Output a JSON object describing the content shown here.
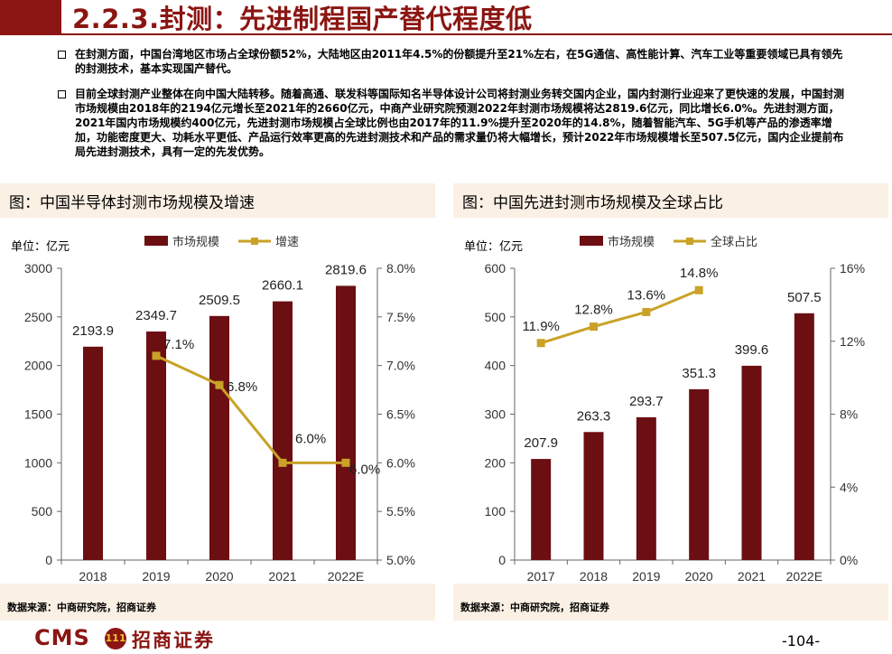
{
  "header": {
    "title": "2.2.3.封测：先进制程国产替代程度低"
  },
  "bullets": [
    "在封测方面，中国台湾地区市场占全球份额52%，大陆地区由2011年4.5%的份额提升至21%左右，在5G通信、高性能计算、汽车工业等重要领域已具有领先的封测技术，基本实现国产替代。",
    "目前全球封测产业整体在向中国大陆转移。随着高通、联发科等国际知名半导体设计公司将封测业务转交国内企业，国内封测行业迎来了更快速的发展，中国封测市场规模由2018年的2194亿元增长至2021年的2660亿元，中商产业研究院预测2022年封测市场规模将达2819.6亿元，同比增长6.0%。先进封测方面，2021年国内市场规模约400亿元，先进封测市场规模占全球比例也由2017年的11.9%提升至2020年的14.8%，随着智能汽车、5G手机等产品的渗透率增加，功能密度更大、功耗水平更低、产品运行效率更高的先进封测技术和产品的需求量仍将大幅增长，预计2022年市场规模增长至507.5亿元，国内企业提前布局先进封测技术，具有一定的先发优势。"
  ],
  "colors": {
    "brand": "#8b1512",
    "bar": "#6b0f12",
    "line": "#c9a227",
    "panel_bg": "#fbf0e4"
  },
  "chart_data": [
    {
      "type": "bar",
      "panel_title": "图：中国半导体封测市场规模及增速",
      "unit": "单位：亿元",
      "categories": [
        "2018",
        "2019",
        "2020",
        "2021",
        "2022E"
      ],
      "series": [
        {
          "name": "市场规模",
          "kind": "bar",
          "axis": "left",
          "values": [
            2193.9,
            2349.7,
            2509.5,
            2660.1,
            2819.6
          ],
          "labels": [
            "2193.9",
            "2349.7",
            "2509.5",
            "2660.1",
            "2819.6"
          ]
        },
        {
          "name": "增速",
          "kind": "line",
          "axis": "right",
          "values": [
            null,
            7.1,
            6.8,
            6.0,
            6.0
          ],
          "labels": [
            "",
            "7.1%",
            "6.8%",
            "6.0%",
            "6.0%"
          ]
        }
      ],
      "y_left": {
        "range": [
          0,
          3000
        ],
        "ticks": [
          "0",
          "500",
          "1000",
          "1500",
          "2000",
          "2500",
          "3000"
        ]
      },
      "y_right": {
        "range": [
          5.0,
          8.0
        ],
        "ticks": [
          "5.0%",
          "5.5%",
          "6.0%",
          "6.5%",
          "7.0%",
          "7.5%",
          "8.0%"
        ]
      },
      "legend_position": "top",
      "source": "数据来源：中商研究院，招商证券"
    },
    {
      "type": "bar",
      "panel_title": "图：中国先进封测市场规模及全球占比",
      "unit": "单位：亿元",
      "categories": [
        "2017",
        "2018",
        "2019",
        "2020",
        "2021",
        "2022E"
      ],
      "series": [
        {
          "name": "市场规模",
          "kind": "bar",
          "axis": "left",
          "values": [
            207.9,
            263.3,
            293.7,
            351.3,
            399.6,
            507.5
          ],
          "labels": [
            "207.9",
            "263.3",
            "293.7",
            "351.3",
            "399.6",
            "507.5"
          ]
        },
        {
          "name": "全球占比",
          "kind": "line",
          "axis": "right",
          "values": [
            11.9,
            12.8,
            13.6,
            14.8,
            null,
            null
          ],
          "labels": [
            "11.9%",
            "12.8%",
            "13.6%",
            "14.8%",
            "",
            ""
          ]
        }
      ],
      "y_left": {
        "range": [
          0,
          600
        ],
        "ticks": [
          "0",
          "100",
          "200",
          "300",
          "400",
          "500",
          "600"
        ]
      },
      "y_right": {
        "range": [
          0,
          16
        ],
        "ticks": [
          "0%",
          "4%",
          "8%",
          "12%",
          "16%"
        ]
      },
      "legend_position": "top",
      "source": "数据来源：中商研究院，招商证券"
    }
  ],
  "footer": {
    "logo_latin": "CMS",
    "logo_mark": "111",
    "logo_cn": "招商证券",
    "page": "-104-"
  }
}
